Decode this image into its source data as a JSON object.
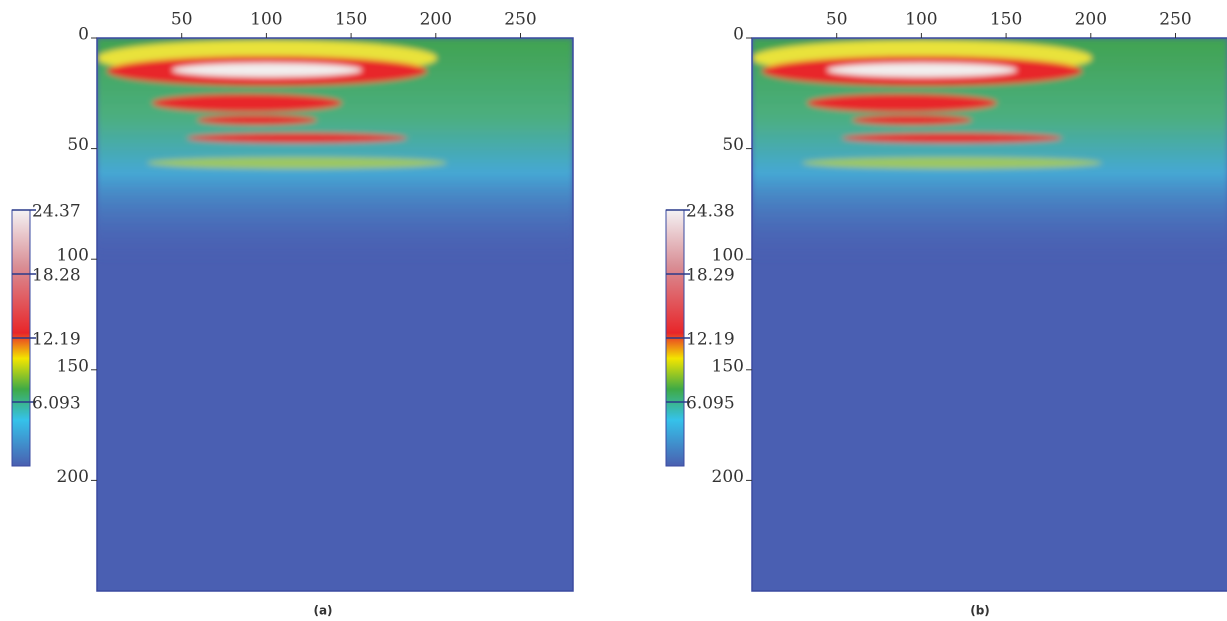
{
  "chart_data": [
    {
      "type": "heatmap",
      "caption": "(a)",
      "xlim": [
        0,
        281
      ],
      "xticks": [
        50,
        100,
        150,
        200,
        250
      ],
      "ylim": [
        0,
        250
      ],
      "yticks": [
        0,
        50,
        100,
        150,
        200
      ],
      "colorbar": {
        "clim": [
          0,
          24.37
        ],
        "ticks": [
          24.37,
          18.28,
          12.19,
          6.093
        ]
      }
    },
    {
      "type": "heatmap",
      "caption": "(b)",
      "xlim": [
        0,
        281
      ],
      "xticks": [
        50,
        100,
        150,
        200,
        250
      ],
      "ylim": [
        0,
        250
      ],
      "yticks": [
        0,
        50,
        100,
        150,
        200
      ],
      "colorbar": {
        "clim": [
          0,
          24.38
        ],
        "ticks": [
          24.38,
          18.29,
          12.19,
          6.095
        ]
      }
    }
  ]
}
